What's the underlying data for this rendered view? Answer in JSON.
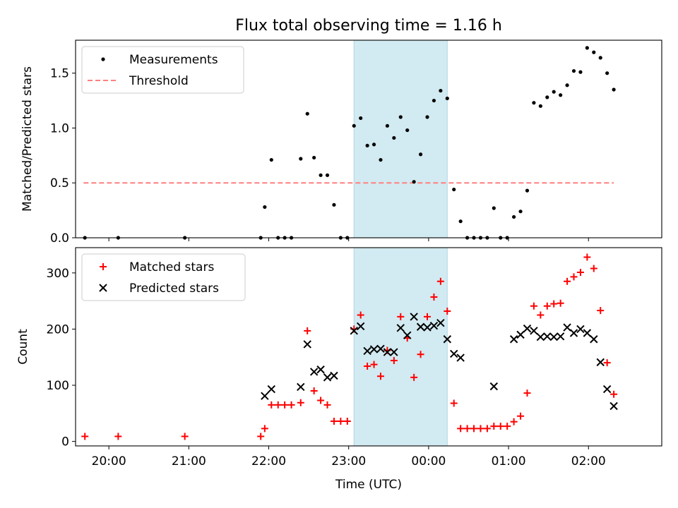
{
  "title": "Flux total observing time = 1.16 h",
  "colors": {
    "measurement": "#000000",
    "threshold": "#ff7f7f",
    "shade": "#add8e6",
    "matched": "#ff0000",
    "predicted": "#000000"
  },
  "chart_data": [
    {
      "type": "scatter",
      "ylabel": "Matched/Predicted stars",
      "xlabel": "",
      "ylim": [
        0,
        1.8
      ],
      "yticks": [
        "0.0",
        "0.5",
        "1.0",
        "1.5"
      ],
      "xticks": [
        "20:00",
        "21:00",
        "22:00",
        "23:00",
        "00:00",
        "01:00",
        "02:00"
      ],
      "x_range": [
        "19:35",
        "02:55"
      ],
      "legend_position": "top-left",
      "shaded_span": [
        "23:04",
        "00:14"
      ],
      "threshold": {
        "name": "Threshold",
        "value": 0.5,
        "x": [
          "19:41",
          "02:19"
        ]
      },
      "series": [
        {
          "name": "Measurements",
          "marker": "dot",
          "points": [
            [
              "19:42",
              0
            ],
            [
              "20:07",
              0
            ],
            [
              "20:57",
              0
            ],
            [
              "21:54",
              0
            ],
            [
              "21:57",
              0.28
            ],
            [
              "22:02",
              0.71
            ],
            [
              "22:07",
              0
            ],
            [
              "22:12",
              0
            ],
            [
              "22:17",
              0
            ],
            [
              "22:24",
              0.72
            ],
            [
              "22:29",
              1.13
            ],
            [
              "22:34",
              0.73
            ],
            [
              "22:39",
              0.57
            ],
            [
              "22:44",
              0.57
            ],
            [
              "22:49",
              0.3
            ],
            [
              "22:54",
              0
            ],
            [
              "22:59",
              0
            ],
            [
              "23:04",
              1.02
            ],
            [
              "23:09",
              1.09
            ],
            [
              "23:14",
              0.84
            ],
            [
              "23:19",
              0.85
            ],
            [
              "23:24",
              0.71
            ],
            [
              "23:29",
              1.02
            ],
            [
              "23:34",
              0.91
            ],
            [
              "23:39",
              1.1
            ],
            [
              "23:44",
              0.98
            ],
            [
              "23:49",
              0.51
            ],
            [
              "23:54",
              0.76
            ],
            [
              "23:59",
              1.1
            ],
            [
              "00:04",
              1.25
            ],
            [
              "00:09",
              1.34
            ],
            [
              "00:14",
              1.27
            ],
            [
              "00:19",
              0.44
            ],
            [
              "00:24",
              0.15
            ],
            [
              "00:29",
              0
            ],
            [
              "00:34",
              0
            ],
            [
              "00:39",
              0
            ],
            [
              "00:44",
              0
            ],
            [
              "00:49",
              0.27
            ],
            [
              "00:54",
              0
            ],
            [
              "00:59",
              0
            ],
            [
              "01:04",
              0.19
            ],
            [
              "01:09",
              0.24
            ],
            [
              "01:14",
              0.43
            ],
            [
              "01:19",
              1.23
            ],
            [
              "01:24",
              1.2
            ],
            [
              "01:29",
              1.28
            ],
            [
              "01:34",
              1.33
            ],
            [
              "01:39",
              1.3
            ],
            [
              "01:44",
              1.39
            ],
            [
              "01:49",
              1.52
            ],
            [
              "01:54",
              1.51
            ],
            [
              "01:59",
              1.73
            ],
            [
              "02:04",
              1.69
            ],
            [
              "02:09",
              1.64
            ],
            [
              "02:14",
              1.5
            ],
            [
              "02:19",
              1.35
            ]
          ]
        }
      ]
    },
    {
      "type": "scatter",
      "ylabel": "Count",
      "xlabel": "Time (UTC)",
      "ylim": [
        -8,
        345
      ],
      "yticks": [
        "0",
        "100",
        "200",
        "300"
      ],
      "xticks": [
        "20:00",
        "21:00",
        "22:00",
        "23:00",
        "00:00",
        "01:00",
        "02:00"
      ],
      "x_range": [
        "19:35",
        "02:55"
      ],
      "legend_position": "top-left",
      "shaded_span": [
        "23:04",
        "00:14"
      ],
      "series": [
        {
          "name": "Matched stars",
          "marker": "plus",
          "points": [
            [
              "19:42",
              9
            ],
            [
              "20:07",
              9
            ],
            [
              "20:57",
              9
            ],
            [
              "21:54",
              9
            ],
            [
              "21:57",
              23
            ],
            [
              "22:02",
              65
            ],
            [
              "22:07",
              65
            ],
            [
              "22:12",
              65
            ],
            [
              "22:17",
              65
            ],
            [
              "22:24",
              69
            ],
            [
              "22:29",
              197
            ],
            [
              "22:34",
              90
            ],
            [
              "22:39",
              73
            ],
            [
              "22:44",
              65
            ],
            [
              "22:49",
              36
            ],
            [
              "22:54",
              36
            ],
            [
              "22:59",
              36
            ],
            [
              "23:04",
              200
            ],
            [
              "23:09",
              225
            ],
            [
              "23:14",
              134
            ],
            [
              "23:19",
              137
            ],
            [
              "23:24",
              116
            ],
            [
              "23:29",
              162
            ],
            [
              "23:34",
              144
            ],
            [
              "23:39",
              222
            ],
            [
              "23:44",
              184
            ],
            [
              "23:49",
              114
            ],
            [
              "23:54",
              155
            ],
            [
              "23:59",
              222
            ],
            [
              "00:04",
              257
            ],
            [
              "00:09",
              285
            ],
            [
              "00:14",
              232
            ],
            [
              "00:19",
              68
            ],
            [
              "00:24",
              23
            ],
            [
              "00:29",
              23
            ],
            [
              "00:34",
              23
            ],
            [
              "00:39",
              23
            ],
            [
              "00:44",
              23
            ],
            [
              "00:49",
              27
            ],
            [
              "00:54",
              27
            ],
            [
              "00:59",
              27
            ],
            [
              "01:04",
              35
            ],
            [
              "01:09",
              45
            ],
            [
              "01:14",
              86
            ],
            [
              "01:19",
              241
            ],
            [
              "01:24",
              225
            ],
            [
              "01:29",
              241
            ],
            [
              "01:34",
              245
            ],
            [
              "01:39",
              246
            ],
            [
              "01:44",
              285
            ],
            [
              "01:49",
              293
            ],
            [
              "01:54",
              301
            ],
            [
              "01:59",
              328
            ],
            [
              "02:04",
              308
            ],
            [
              "02:09",
              233
            ],
            [
              "02:14",
              140
            ],
            [
              "02:19",
              84
            ]
          ]
        },
        {
          "name": "Predicted stars",
          "marker": "x",
          "points": [
            [
              "21:57",
              81
            ],
            [
              "22:02",
              93
            ],
            [
              "22:24",
              97
            ],
            [
              "22:29",
              173
            ],
            [
              "22:34",
              124
            ],
            [
              "22:39",
              128
            ],
            [
              "22:44",
              114
            ],
            [
              "22:49",
              117
            ],
            [
              "23:04",
              197
            ],
            [
              "23:09",
              205
            ],
            [
              "23:14",
              161
            ],
            [
              "23:19",
              164
            ],
            [
              "23:24",
              165
            ],
            [
              "23:29",
              159
            ],
            [
              "23:34",
              159
            ],
            [
              "23:39",
              202
            ],
            [
              "23:44",
              189
            ],
            [
              "23:49",
              222
            ],
            [
              "23:54",
              204
            ],
            [
              "23:59",
              203
            ],
            [
              "00:04",
              206
            ],
            [
              "00:09",
              211
            ],
            [
              "00:14",
              182
            ],
            [
              "00:19",
              156
            ],
            [
              "00:24",
              149
            ],
            [
              "00:49",
              98
            ],
            [
              "01:04",
              182
            ],
            [
              "01:09",
              190
            ],
            [
              "01:14",
              201
            ],
            [
              "01:19",
              197
            ],
            [
              "01:24",
              186
            ],
            [
              "01:29",
              187
            ],
            [
              "01:34",
              186
            ],
            [
              "01:39",
              187
            ],
            [
              "01:44",
              203
            ],
            [
              "01:49",
              193
            ],
            [
              "01:54",
              200
            ],
            [
              "01:59",
              193
            ],
            [
              "02:04",
              182
            ],
            [
              "02:09",
              141
            ],
            [
              "02:14",
              93
            ],
            [
              "02:19",
              63
            ]
          ]
        }
      ]
    }
  ]
}
